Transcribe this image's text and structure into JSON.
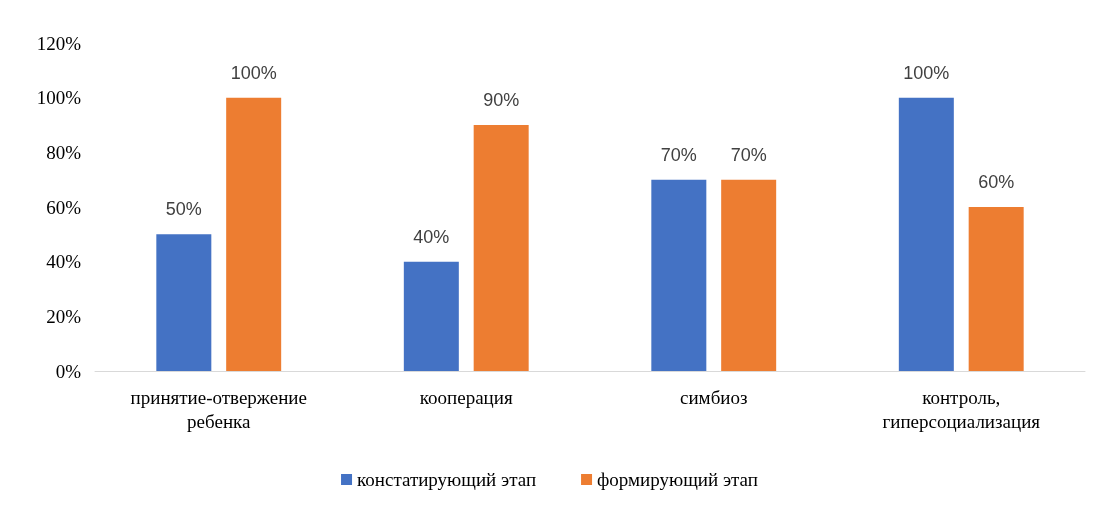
{
  "chart_data": {
    "type": "bar",
    "categories": [
      "принятие-отвержение ребенка",
      "кооперация",
      "симбиоз",
      "контроль, гиперсоциализация"
    ],
    "series": [
      {
        "name": "констатирующий этап",
        "color": "#4472c4",
        "values": [
          50,
          40,
          70,
          100
        ],
        "value_labels": [
          "50%",
          "40%",
          "70%",
          "100%"
        ]
      },
      {
        "name": "формирующий этап",
        "color": "#ed7d31",
        "values": [
          100,
          90,
          70,
          60
        ],
        "value_labels": [
          "100%",
          "90%",
          "70%",
          "60%"
        ]
      }
    ],
    "ylim": [
      0,
      120
    ],
    "yticks": [
      {
        "value": 0,
        "label": "0%"
      },
      {
        "value": 20,
        "label": "20%"
      },
      {
        "value": 40,
        "label": "40%"
      },
      {
        "value": 60,
        "label": "60%"
      },
      {
        "value": 80,
        "label": "80%"
      },
      {
        "value": 100,
        "label": "100%"
      },
      {
        "value": 120,
        "label": "120%"
      }
    ],
    "grid": false,
    "legend": "bottom"
  }
}
